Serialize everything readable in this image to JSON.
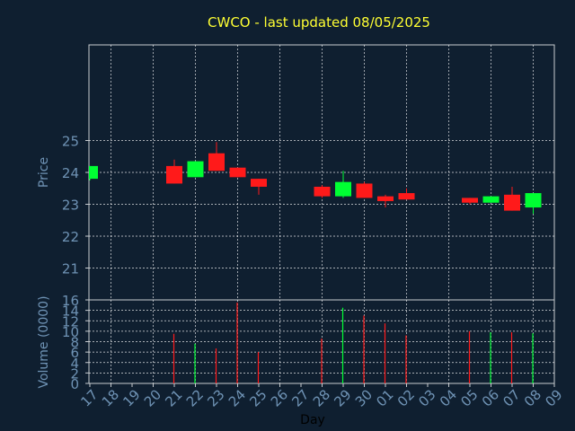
{
  "chart_data": {
    "type": "candlestick",
    "title": "CWCO - last updated 08/05/2025",
    "ylabel_price": "Price",
    "ylabel_volume": "Volume (0000)",
    "xlabel": "Day",
    "x_ticks": [
      "17",
      "18",
      "19",
      "20",
      "21",
      "22",
      "23",
      "24",
      "25",
      "26",
      "27",
      "28",
      "29",
      "30",
      "01",
      "02",
      "03",
      "04",
      "05",
      "06",
      "07",
      "08",
      "09"
    ],
    "price_ylim": [
      20,
      28
    ],
    "price_ticks": [
      21,
      22,
      23,
      24,
      25
    ],
    "volume_ylim": [
      0,
      16
    ],
    "volume_ticks": [
      0,
      2,
      4,
      6,
      8,
      10,
      12,
      14,
      16
    ],
    "grid": true,
    "up_color": "#00ff33",
    "down_color": "#ff1a1a",
    "candles": [
      {
        "day": "17",
        "open": 23.8,
        "high": 24.2,
        "low": 23.75,
        "close": 24.2,
        "volume": 0
      },
      {
        "day": "21",
        "open": 24.2,
        "high": 24.4,
        "low": 23.65,
        "close": 23.65,
        "volume": 9.5
      },
      {
        "day": "22",
        "open": 23.85,
        "high": 24.35,
        "low": 23.85,
        "close": 24.35,
        "volume": 7.6
      },
      {
        "day": "23",
        "open": 24.6,
        "high": 24.95,
        "low": 24.05,
        "close": 24.05,
        "volume": 6.7
      },
      {
        "day": "24",
        "open": 24.15,
        "high": 24.15,
        "low": 23.85,
        "close": 23.85,
        "volume": 15.5
      },
      {
        "day": "25",
        "open": 23.8,
        "high": 23.8,
        "low": 23.3,
        "close": 23.55,
        "volume": 6.0
      },
      {
        "day": "28",
        "open": 23.55,
        "high": 23.6,
        "low": 23.2,
        "close": 23.25,
        "volume": 8.6
      },
      {
        "day": "29",
        "open": 23.25,
        "high": 24.05,
        "low": 23.2,
        "close": 23.7,
        "volume": 14.5
      },
      {
        "day": "30",
        "open": 23.65,
        "high": 23.7,
        "low": 23.2,
        "close": 23.2,
        "volume": 13.0
      },
      {
        "day": "01",
        "open": 23.25,
        "high": 23.3,
        "low": 22.9,
        "close": 23.1,
        "volume": 11.5
      },
      {
        "day": "02",
        "open": 23.35,
        "high": 23.5,
        "low": 23.15,
        "close": 23.15,
        "volume": 9.2
      },
      {
        "day": "05",
        "open": 23.2,
        "high": 23.2,
        "low": 23.0,
        "close": 23.05,
        "volume": 10.0
      },
      {
        "day": "06",
        "open": 23.05,
        "high": 23.25,
        "low": 23.05,
        "close": 23.25,
        "volume": 9.8
      },
      {
        "day": "07",
        "open": 23.3,
        "high": 23.55,
        "low": 22.8,
        "close": 22.8,
        "volume": 9.8
      },
      {
        "day": "08",
        "open": 22.9,
        "high": 23.35,
        "low": 22.7,
        "close": 23.35,
        "volume": 9.6
      }
    ]
  }
}
